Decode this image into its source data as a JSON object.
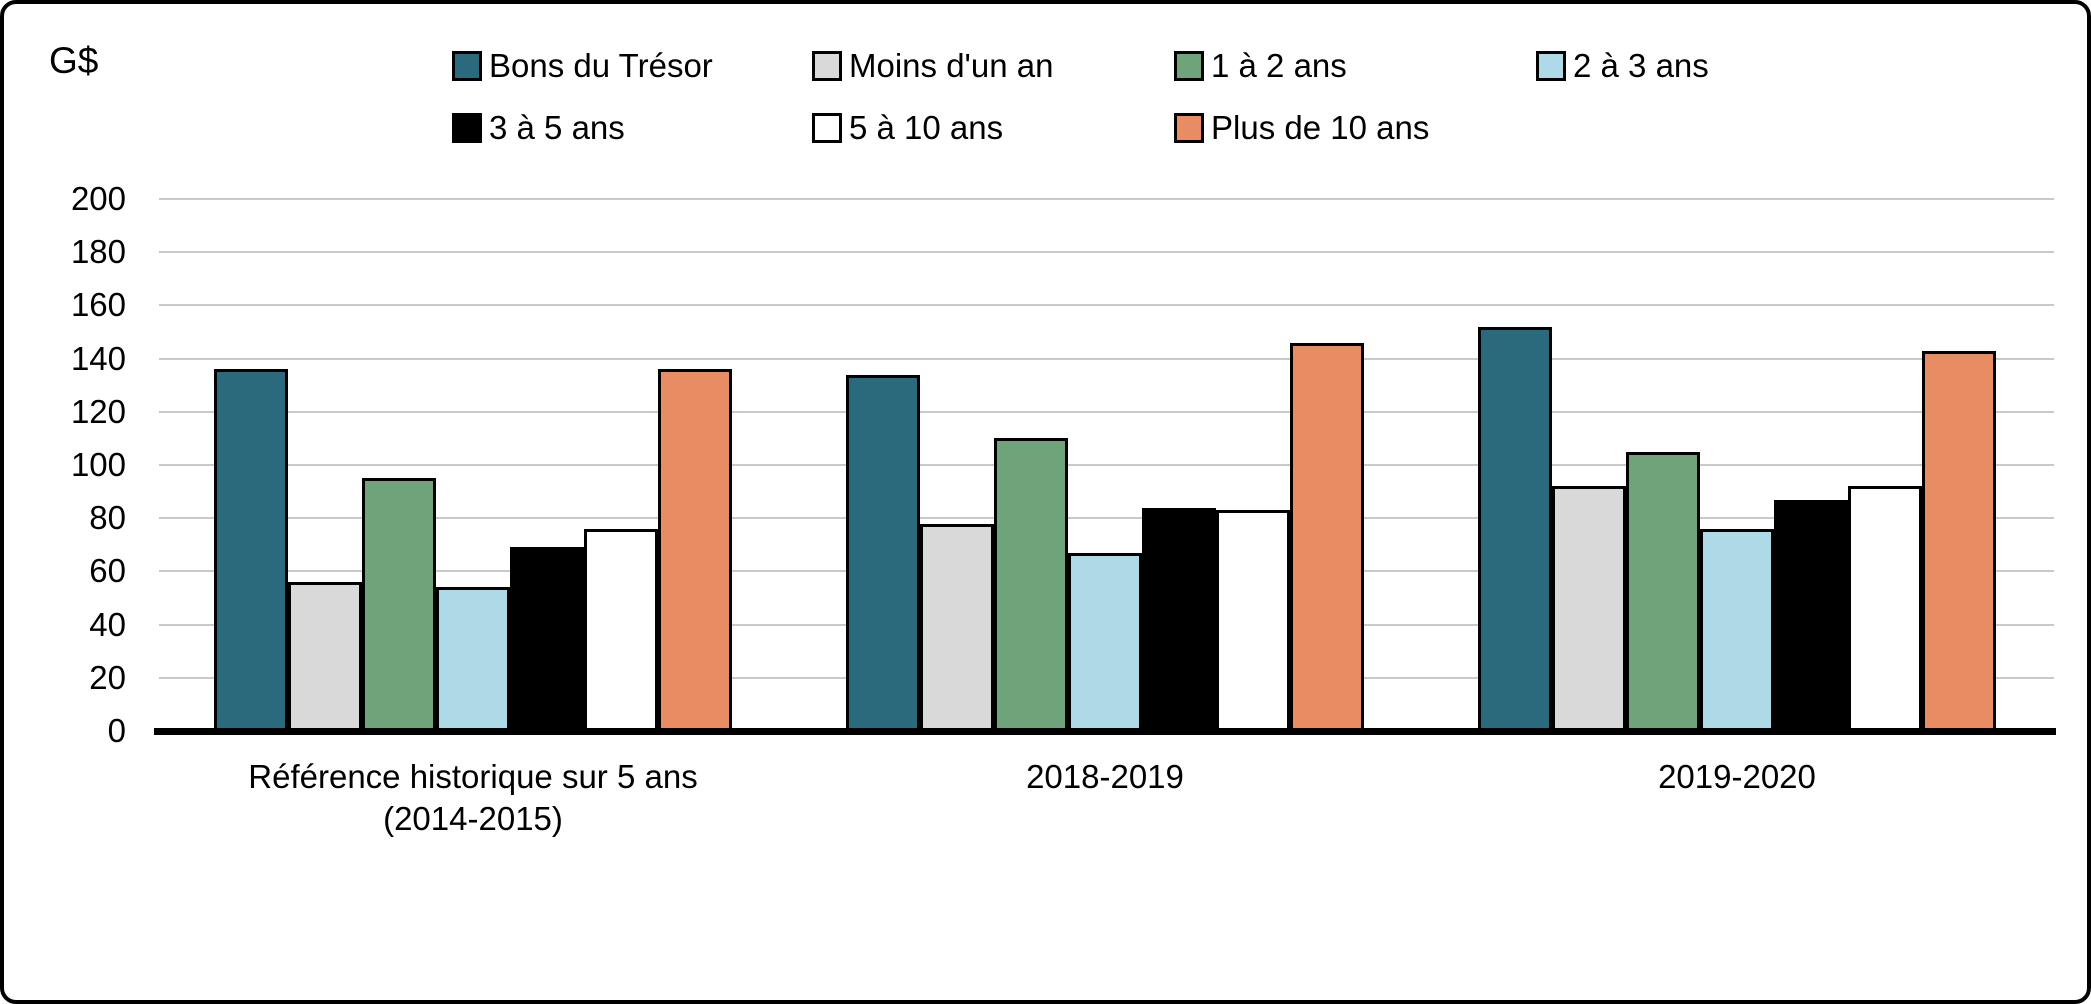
{
  "figure": {
    "unit_label": "G$"
  },
  "chart_data": {
    "type": "bar",
    "title": "",
    "ylabel": "G$",
    "xlabel": "",
    "ylim": [
      0,
      200
    ],
    "ytick_step": 20,
    "ytick_labels": [
      "0",
      "20",
      "40",
      "60",
      "80",
      "100",
      "120",
      "140",
      "160",
      "180",
      "200"
    ],
    "grid": true,
    "legend_position": "top",
    "legend_rows": [
      4,
      3
    ],
    "categories": [
      "Référence historique sur 5 ans (2014-2015)",
      "2018-2019",
      "2019-2020"
    ],
    "category_label_lines": [
      [
        "Référence historique sur 5 ans",
        "(2014-2015)"
      ],
      [
        "2018-2019",
        ""
      ],
      [
        "2019-2020",
        ""
      ]
    ],
    "series": [
      {
        "name": "Bons du Trésor",
        "color": "#2B6A7C",
        "values": [
          136,
          134,
          152
        ]
      },
      {
        "name": "Moins d'un an",
        "color": "#D9D9D9",
        "values": [
          56,
          78,
          92
        ]
      },
      {
        "name": "1 à 2 ans",
        "color": "#6FA47A",
        "values": [
          95,
          110,
          105
        ]
      },
      {
        "name": "2 à 3 ans",
        "color": "#AED9E6",
        "values": [
          54,
          67,
          76
        ]
      },
      {
        "name": "3 à 5 ans",
        "color": "#000000",
        "values": [
          69,
          84,
          87
        ]
      },
      {
        "name": "5 à 10 ans",
        "color": "#FFFFFF",
        "values": [
          76,
          83,
          92
        ]
      },
      {
        "name": "Plus de 10 ans",
        "color": "#E88C64",
        "values": [
          136,
          146,
          143
        ]
      }
    ]
  }
}
